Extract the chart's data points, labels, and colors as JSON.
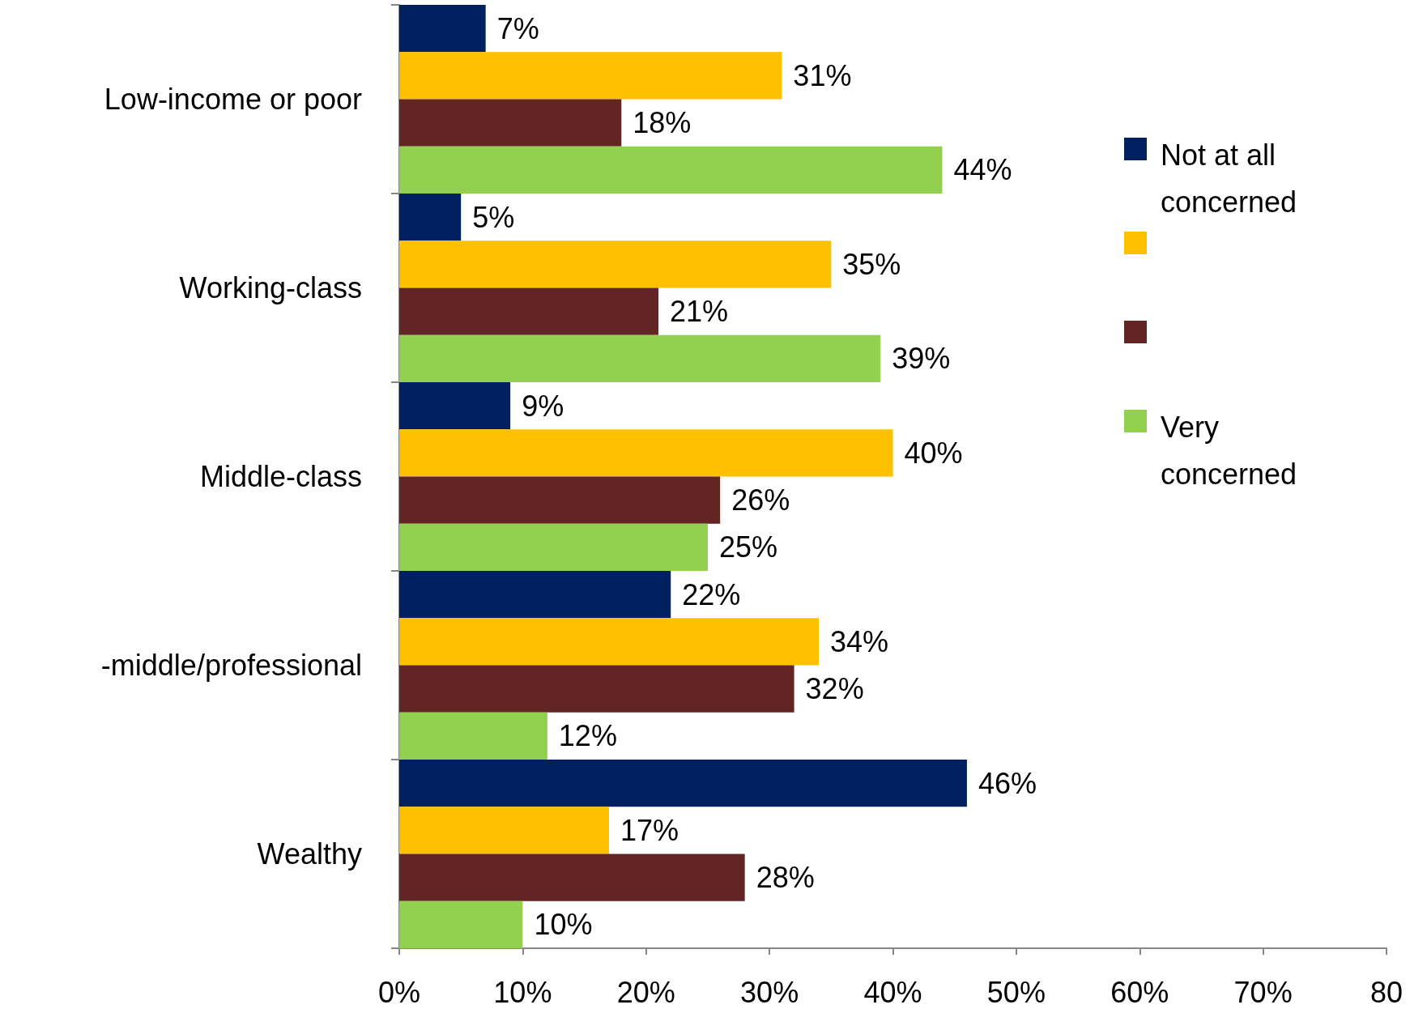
{
  "chart_data": {
    "type": "bar",
    "orientation": "horizontal",
    "categories": [
      "Low-income or poor",
      "Working-class",
      "Middle-class",
      "-middle/professional",
      "Wealthy"
    ],
    "series": [
      {
        "name": "Not at all concerned",
        "color": "#002060",
        "values": [
          7,
          5,
          9,
          22,
          46
        ]
      },
      {
        "name": null,
        "color": "#ffc000",
        "values": [
          31,
          35,
          40,
          34,
          17
        ]
      },
      {
        "name": null,
        "color": "#632523",
        "values": [
          18,
          21,
          26,
          32,
          28
        ]
      },
      {
        "name": "Very concerned",
        "color": "#92d050",
        "values": [
          44,
          39,
          25,
          12,
          10
        ]
      }
    ],
    "xlim": [
      0,
      80
    ],
    "xticks": [
      {
        "value": 0,
        "label": "0%"
      },
      {
        "value": 10,
        "label": "10%"
      },
      {
        "value": 20,
        "label": "20%"
      },
      {
        "value": 30,
        "label": "30%"
      },
      {
        "value": 40,
        "label": "40%"
      },
      {
        "value": 50,
        "label": "50%"
      },
      {
        "value": 60,
        "label": "60%"
      },
      {
        "value": 70,
        "label": "70%"
      },
      {
        "value": 80,
        "label": "80"
      }
    ],
    "value_labels": [
      [
        "7%",
        "5%",
        "9%",
        "22%",
        "46%"
      ],
      [
        "31%",
        "35%",
        "40%",
        "34%",
        "17%"
      ],
      [
        "18%",
        "21%",
        "26%",
        "32%",
        "28%"
      ],
      [
        "44%",
        "39%",
        "25%",
        "12%",
        "10%"
      ]
    ],
    "grid": false,
    "legend": "top right"
  }
}
